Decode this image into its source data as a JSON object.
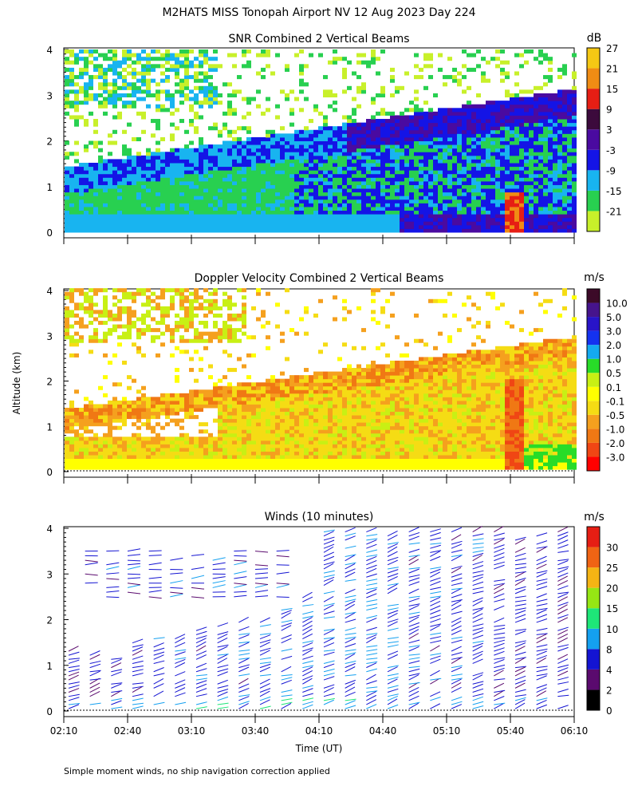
{
  "figure": {
    "title": "M2HATS MISS Tonopah Airport NV  12 Aug 2023 Day 224",
    "shared_ylabel": "Altitude (km)",
    "shared_xlabel": "Time (UT)",
    "footnote": "Simple moment winds, no ship navigation correction applied"
  },
  "chart_data": [
    {
      "type": "heatmap",
      "title": "SNR Combined 2 Vertical Beams",
      "xlim": [
        "02:10",
        "06:10"
      ],
      "ylim": [
        0,
        4
      ],
      "yticks": [
        "0",
        "1",
        "2",
        "3",
        "4"
      ],
      "colorbar": {
        "unit": "dB",
        "colors": [
          "#c8f02a",
          "#28d050",
          "#18b4f0",
          "#1414e6",
          "#4a0aa0",
          "#3c0a3c",
          "#e61e14",
          "#f08c14",
          "#f5c814"
        ],
        "ticks": [
          "-21",
          "-15",
          "-9",
          "-3",
          "3",
          "9",
          "15",
          "21",
          "27"
        ]
      },
      "description_values": {
        "near_surface_layer_dB": -3,
        "peak_dB_near_05:45_0.3km": 21,
        "upper_layer_ascends_km": [
          1.2,
          2.8
        ]
      }
    },
    {
      "type": "heatmap",
      "title": "Doppler Velocity Combined 2 Vertical Beams",
      "xlim": [
        "02:10",
        "06:10"
      ],
      "ylim": [
        0,
        4
      ],
      "yticks": [
        "0",
        "1",
        "2",
        "3",
        "4"
      ],
      "colorbar": {
        "unit": "m/s",
        "colors": [
          "#ff0000",
          "#f04614",
          "#f07814",
          "#f5a01e",
          "#f5dc14",
          "#ffff00",
          "#c8f014",
          "#28dc28",
          "#14aaf0",
          "#1432f0",
          "#2814c8",
          "#46148c",
          "#3c0a28"
        ],
        "ticks": [
          "-3.0",
          "-2.0",
          "-1.0",
          "-0.5",
          "-0.1",
          "0.1",
          "0.5",
          "1.0",
          "2.0",
          "3.0",
          "5.0",
          "10.0"
        ]
      }
    },
    {
      "type": "scatter",
      "title": "Winds (10 minutes)",
      "xlim": [
        "02:10",
        "06:10"
      ],
      "ylim": [
        0,
        4
      ],
      "yticks": [
        "0",
        "1",
        "2",
        "3",
        "4"
      ],
      "xticks": [
        "02:10",
        "02:40",
        "03:10",
        "03:40",
        "04:10",
        "04:40",
        "05:10",
        "05:40",
        "06:10"
      ],
      "colorbar": {
        "unit": "m/s",
        "colors": [
          "#000000",
          "#5a0a6e",
          "#1414d2",
          "#14a0f0",
          "#1ee678",
          "#96e614",
          "#f5b414",
          "#f06414",
          "#e61e14"
        ],
        "ticks": [
          "0",
          "2",
          "4",
          "8",
          "10",
          "15",
          "20",
          "25",
          "30"
        ]
      },
      "columns_every_minutes": 10,
      "columns": [
        {
          "t": "02:10",
          "range_km": [
            0.0,
            1.4
          ],
          "wind_ms": 4
        },
        {
          "t": "02:20",
          "range_km": [
            0.0,
            1.3
          ],
          "wind_ms": 5
        },
        {
          "t": "02:30",
          "range_km": [
            0.0,
            1.3
          ],
          "wind_ms": 5
        },
        {
          "t": "02:40",
          "range_km": [
            0.0,
            1.5
          ],
          "wind_ms": 5
        },
        {
          "t": "02:50",
          "range_km": [
            0.0,
            1.6
          ],
          "wind_ms": 6
        },
        {
          "t": "03:00",
          "range_km": [
            0.0,
            1.6
          ],
          "wind_ms": 6
        },
        {
          "t": "03:10",
          "range_km": [
            0.0,
            1.8
          ],
          "wind_ms": 6
        },
        {
          "t": "03:20",
          "range_km": [
            0.0,
            1.9
          ],
          "wind_ms": 6
        },
        {
          "t": "03:30",
          "range_km": [
            0.0,
            2.0
          ],
          "wind_ms": 6
        },
        {
          "t": "03:40",
          "range_km": [
            0.0,
            2.1
          ],
          "wind_ms": 7
        },
        {
          "t": "03:50",
          "range_km": [
            0.0,
            2.3
          ],
          "wind_ms": 7
        },
        {
          "t": "04:00",
          "range_km": [
            0.0,
            2.5
          ],
          "wind_ms": 7
        },
        {
          "t": "04:10",
          "range_km": [
            0.0,
            4.0
          ],
          "wind_ms": 7
        },
        {
          "t": "04:20",
          "range_km": [
            0.0,
            4.0
          ],
          "wind_ms": 7
        },
        {
          "t": "04:30",
          "range_km": [
            0.0,
            4.0
          ],
          "wind_ms": 7
        },
        {
          "t": "04:40",
          "range_km": [
            0.0,
            4.0
          ],
          "wind_ms": 7
        },
        {
          "t": "04:50",
          "range_km": [
            0.0,
            4.0
          ],
          "wind_ms": 6
        },
        {
          "t": "05:00",
          "range_km": [
            0.0,
            4.0
          ],
          "wind_ms": 6
        },
        {
          "t": "05:10",
          "range_km": [
            0.0,
            4.0
          ],
          "wind_ms": 6
        },
        {
          "t": "05:20",
          "range_km": [
            0.0,
            4.0
          ],
          "wind_ms": 6
        },
        {
          "t": "05:30",
          "range_km": [
            0.0,
            4.0
          ],
          "wind_ms": 5
        },
        {
          "t": "05:40",
          "range_km": [
            0.0,
            4.0
          ],
          "wind_ms": 5
        },
        {
          "t": "05:50",
          "range_km": [
            0.0,
            4.0
          ],
          "wind_ms": 5
        },
        {
          "t": "06:00",
          "range_km": [
            0.0,
            4.0
          ],
          "wind_ms": 5
        }
      ],
      "upper_level_cluster": {
        "t_range": [
          "02:10",
          "03:50"
        ],
        "range_km": [
          2.5,
          3.6
        ],
        "wind_ms": 5
      }
    }
  ]
}
